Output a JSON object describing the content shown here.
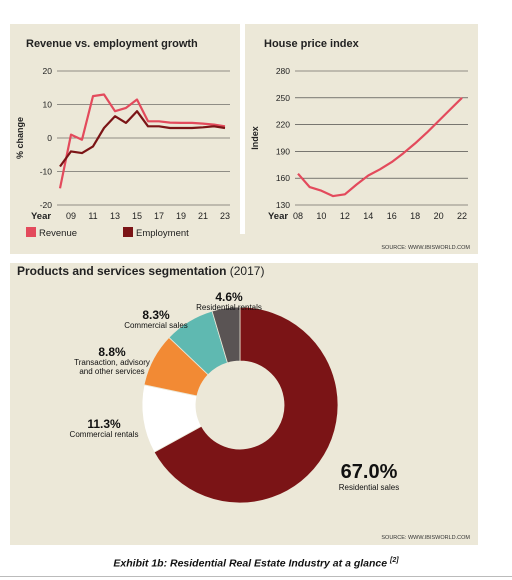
{
  "chart_data": [
    {
      "type": "line",
      "title": "Revenue vs. employment growth",
      "ylabel": "% change",
      "xlabel": "Year",
      "ylim": [
        -20,
        20
      ],
      "yticks": [
        20,
        10,
        0,
        -10,
        -20
      ],
      "xlim": [
        2008,
        2023
      ],
      "xticks": [
        2009,
        2011,
        2013,
        2015,
        2017,
        2019,
        2021,
        2023
      ],
      "xtick_labels": [
        "09",
        "11",
        "13",
        "15",
        "17",
        "19",
        "21",
        "23"
      ],
      "legend_position": "bottom",
      "series": [
        {
          "name": "Revenue",
          "color": "#e34a5c",
          "x": [
            2008,
            2009,
            2010,
            2011,
            2012,
            2013,
            2014,
            2015,
            2016,
            2017,
            2018,
            2019,
            2020,
            2021,
            2022,
            2023
          ],
          "values": [
            -15,
            1,
            -0.5,
            12.5,
            13,
            8,
            9,
            11.5,
            5,
            5,
            4.6,
            4.5,
            4.5,
            4.3,
            4,
            3.5
          ]
        },
        {
          "name": "Employment",
          "color": "#7b1416",
          "x": [
            2008,
            2009,
            2010,
            2011,
            2012,
            2013,
            2014,
            2015,
            2016,
            2017,
            2018,
            2019,
            2020,
            2021,
            2022,
            2023
          ],
          "values": [
            -8.5,
            -4,
            -4.5,
            -2.5,
            3,
            6.5,
            4.5,
            8,
            3.5,
            3.5,
            3,
            3,
            3,
            3.2,
            3.5,
            3
          ]
        }
      ]
    },
    {
      "type": "line",
      "title": "House price index",
      "ylabel": "Index",
      "xlabel": "Year",
      "ylim": [
        130,
        280
      ],
      "yticks": [
        280,
        250,
        220,
        190,
        160,
        130
      ],
      "xlim": [
        2008,
        2022
      ],
      "xticks": [
        2008,
        2010,
        2012,
        2014,
        2016,
        2018,
        2020,
        2022
      ],
      "xtick_labels": [
        "08",
        "10",
        "12",
        "14",
        "16",
        "18",
        "20",
        "22"
      ],
      "series": [
        {
          "color": "#e34a5c",
          "x": [
            2008,
            2009,
            2010,
            2011,
            2012,
            2013,
            2014,
            2015,
            2016,
            2017,
            2018,
            2019,
            2020,
            2021,
            2022
          ],
          "values": [
            165,
            150,
            146,
            140,
            142,
            153,
            163,
            170,
            178,
            188,
            199,
            211,
            224,
            237,
            250
          ]
        }
      ]
    },
    {
      "type": "pie",
      "title": "Products and services segmentation",
      "title_year": "(2017)",
      "categories": [
        "Residential sales",
        "Commercial rentals",
        "Transaction, advisory and other services",
        "Commercial sales",
        "Residential rentals"
      ],
      "values": [
        67.0,
        11.3,
        8.8,
        8.3,
        4.6
      ],
      "value_labels": [
        "67.0%",
        "11.3%",
        "8.8%",
        "8.3%",
        "4.6%"
      ],
      "label_lines": [
        [
          "Residential sales"
        ],
        [
          "Commercial rentals"
        ],
        [
          "Transaction, advisory",
          "and other services"
        ],
        [
          "Commercial sales"
        ],
        [
          "Residential rentals"
        ]
      ],
      "colors": [
        "#7b1416",
        "#ffffff",
        "#f28a34",
        "#5fb9b1",
        "#5a5454"
      ]
    }
  ],
  "source_top": "SOURCE: WWW.IBISWORLD.COM",
  "source_bottom": "SOURCE: WWW.IBISWORLD.COM",
  "caption": "Exhibit 1b: Residential Real Estate Industry at a glance",
  "caption_ref": "[2]"
}
